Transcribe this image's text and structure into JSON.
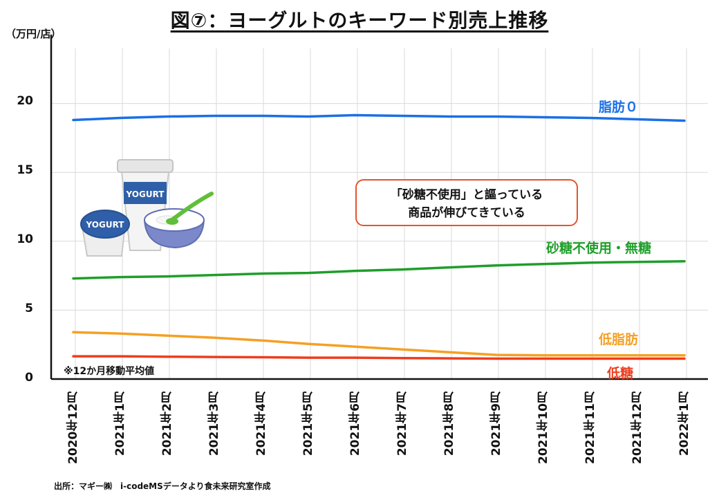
{
  "chart_data": {
    "type": "line",
    "title": "図⑦：ヨーグルトのキーワード別売上推移",
    "ylabel": "（万円/店）",
    "ylim": [
      0,
      25
    ],
    "yticks": [
      "0",
      "5",
      "10",
      "15",
      "20"
    ],
    "grid": true,
    "categories": [
      "2020年12月",
      "2021年1月",
      "2021年2月",
      "2021年3月",
      "2021年4月",
      "2021年5月",
      "2021年6月",
      "2021年7月",
      "2021年8月",
      "2021年9月",
      "2021年10月",
      "2021年11月",
      "2021年12月",
      "2022年1月"
    ],
    "series": [
      {
        "name": "脂肪０",
        "color": "#1a6fe6",
        "values": [
          18.8,
          18.95,
          19.05,
          19.1,
          19.1,
          19.05,
          19.15,
          19.1,
          19.05,
          19.05,
          19.0,
          18.95,
          18.85,
          18.75
        ]
      },
      {
        "name": "砂糖不使用・無糖",
        "color": "#1f9e2a",
        "values": [
          7.3,
          7.4,
          7.45,
          7.55,
          7.65,
          7.7,
          7.85,
          7.95,
          8.1,
          8.25,
          8.35,
          8.45,
          8.5,
          8.55
        ]
      },
      {
        "name": "低脂肪",
        "color": "#f5a023",
        "values": [
          3.4,
          3.3,
          3.15,
          3.0,
          2.8,
          2.55,
          2.35,
          2.15,
          1.95,
          1.75,
          1.72,
          1.72,
          1.72,
          1.72
        ]
      },
      {
        "name": "低糖",
        "color": "#ee3d1d",
        "values": [
          1.65,
          1.65,
          1.62,
          1.6,
          1.58,
          1.55,
          1.55,
          1.52,
          1.5,
          1.48,
          1.48,
          1.48,
          1.48,
          1.48
        ]
      }
    ],
    "annotation_lines": [
      "「砂糖不使用」と謳っている",
      "商品が伸びてきている"
    ],
    "product_labels": [
      "YOGURT",
      "YOGURT"
    ],
    "note": "※12か月移動平均値",
    "source": "出所：マギー㈱　i-codeMSデータより食未来研究室作成"
  }
}
